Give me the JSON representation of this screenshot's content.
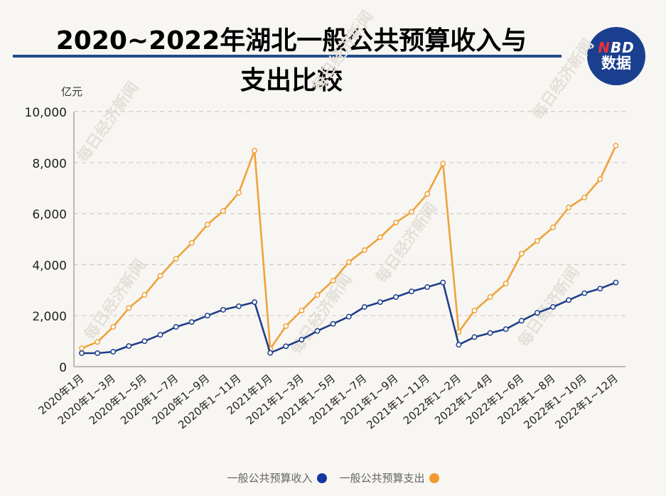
{
  "header": {
    "title_line1": "2020~2022年湖北一般公共预算收入与",
    "title_line2": "支出比较",
    "logo_top_n": "N",
    "logo_top_rest": "BD",
    "logo_bottom": "数据"
  },
  "watermark": "每日经济新闻",
  "colors": {
    "income": "#1f3f8a",
    "expenditure": "#eea33a",
    "grid": "#cfcbc4",
    "axis": "#bdbab4",
    "title_rule": "#1f4b8a",
    "logo_bg": "#1b3f8f"
  },
  "legend": [
    {
      "label": "一般公共预算收入",
      "color": "#1437a0"
    },
    {
      "label": "一般公共预算支出",
      "color": "#f39a2e"
    }
  ],
  "chart_data": {
    "type": "line",
    "title": "2020~2022年湖北一般公共预算收入与支出比较",
    "xlabel": "",
    "ylabel": "亿元",
    "ylim": [
      0,
      10000
    ],
    "yticks": [
      0,
      2000,
      4000,
      6000,
      8000,
      10000
    ],
    "ytick_labels": [
      "0",
      "2,000",
      "4,000",
      "6,000",
      "8,000",
      "10,000"
    ],
    "grid": true,
    "legend_position": "bottom",
    "categories": [
      "2020年1月",
      "2020年1~2月",
      "2020年1~3月",
      "2020年1~4月",
      "2020年1~5月",
      "2020年1~6月",
      "2020年1~7月",
      "2020年1~8月",
      "2020年1~9月",
      "2020年1~10月",
      "2020年1~11月",
      "2020年1~12月",
      "2021年1月",
      "2021年1~2月",
      "2021年1~3月",
      "2021年1~4月",
      "2021年1~5月",
      "2021年1~6月",
      "2021年1~7月",
      "2021年1~8月",
      "2021年1~9月",
      "2021年1~10月",
      "2021年1~11月",
      "2021年1~12月",
      "2022年1~2月",
      "2022年1~3月",
      "2022年1~4月",
      "2022年1~5月",
      "2022年1~6月",
      "2022年1~7月",
      "2022年1~8月",
      "2022年1~9月",
      "2022年1~10月",
      "2022年1~11月",
      "2022年1~12月"
    ],
    "visible_tick_labels": [
      "2020年1月",
      "2020年1~3月",
      "2020年1~5月",
      "2020年1~7月",
      "2020年1~9月",
      "2020年1~11月",
      "2021年1月",
      "2021年1~3月",
      "2021年1~5月",
      "2021年1~7月",
      "2021年1~9月",
      "2021年1~11月",
      "2022年1~2月",
      "2022年1~4月",
      "2022年1~6月",
      "2022年1~8月",
      "2022年1~10月",
      "2022年1~12月"
    ],
    "series": [
      {
        "name": "一般公共预算收入",
        "values": [
          530,
          530,
          585,
          810,
          1000,
          1250,
          1560,
          1750,
          2000,
          2230,
          2370,
          2530,
          540,
          800,
          1060,
          1400,
          1680,
          1960,
          2340,
          2530,
          2730,
          2950,
          3120,
          3300,
          860,
          1160,
          1320,
          1470,
          1800,
          2110,
          2340,
          2610,
          2880,
          3060,
          3300
        ]
      },
      {
        "name": "一般公共预算支出",
        "values": [
          720,
          970,
          1560,
          2300,
          2810,
          3560,
          4230,
          4850,
          5570,
          6100,
          6820,
          8470,
          700,
          1590,
          2200,
          2810,
          3370,
          4100,
          4570,
          5070,
          5650,
          6070,
          6770,
          7960,
          1360,
          2200,
          2730,
          3260,
          4430,
          4930,
          5460,
          6240,
          6630,
          7350,
          8660
        ]
      }
    ]
  }
}
